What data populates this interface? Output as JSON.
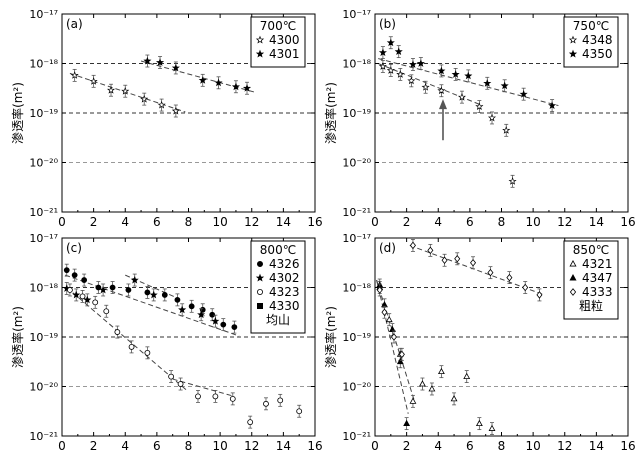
{
  "figure": {
    "y_tick_labels": [
      "10⁻¹⁷",
      "10⁻¹⁸",
      "10⁻¹⁹",
      "10⁻²⁰",
      "10⁻²¹"
    ],
    "x_tick_labels": [
      "0",
      "2",
      "4",
      "6",
      "8",
      "10",
      "12",
      "14",
      "16"
    ]
  },
  "chart_data": [
    {
      "type": "scatter",
      "panel": "(a)",
      "ylabel": "渗透率(m²)",
      "xlim": [
        0,
        16
      ],
      "ylim_log10": [
        -21,
        -17
      ],
      "legend_title": "700℃",
      "series": [
        {
          "name": "4300",
          "marker": "star-open",
          "x": [
            0.8,
            2.0,
            3.1,
            4.0,
            5.2,
            6.3,
            7.2
          ],
          "log_y": [
            -18.24,
            -18.36,
            -18.54,
            -18.56,
            -18.72,
            -18.84,
            -18.96
          ]
        },
        {
          "name": "4301",
          "marker": "star-filled",
          "x": [
            5.4,
            6.2,
            7.2,
            8.9,
            9.9,
            11.0,
            11.7
          ],
          "log_y": [
            -17.95,
            -17.98,
            -18.09,
            -18.34,
            -18.39,
            -18.47,
            -18.5
          ]
        }
      ],
      "trend_lines": [
        {
          "x": [
            0.5,
            7.8
          ],
          "log_y": [
            -18.2,
            -18.98
          ]
        },
        {
          "x": [
            5.0,
            12.2
          ],
          "log_y": [
            -17.95,
            -18.58
          ]
        }
      ],
      "reference_lines_log_y": [
        -18,
        -19,
        -20
      ]
    },
    {
      "type": "scatter",
      "panel": "(b)",
      "ylabel": "渗透率(m²)",
      "xlim": [
        0,
        16
      ],
      "ylim_log10": [
        -21,
        -17
      ],
      "legend_title": "750℃",
      "series": [
        {
          "name": "4348",
          "marker": "star-open",
          "x": [
            0.5,
            1.0,
            1.6,
            2.3,
            3.2,
            4.2,
            5.5,
            6.6,
            7.4,
            8.3,
            8.7
          ],
          "log_y": [
            -18.06,
            -18.14,
            -18.22,
            -18.35,
            -18.48,
            -18.55,
            -18.68,
            -18.87,
            -19.1,
            -19.35,
            -20.38
          ]
        },
        {
          "name": "4350",
          "marker": "star-filled",
          "x": [
            0.5,
            1.0,
            1.5,
            2.4,
            2.9,
            4.2,
            5.1,
            5.9,
            7.1,
            8.2,
            9.4,
            11.2
          ],
          "log_y": [
            -17.78,
            -17.58,
            -17.76,
            -18.02,
            -18.0,
            -18.15,
            -18.22,
            -18.25,
            -18.4,
            -18.45,
            -18.62,
            -18.85
          ]
        }
      ],
      "trend_lines": [
        {
          "x": [
            0.2,
            6.8
          ],
          "log_y": [
            -18.0,
            -18.85
          ]
        },
        {
          "x": [
            0.2,
            11.6
          ],
          "log_y": [
            -17.9,
            -18.85
          ]
        }
      ],
      "arrow": {
        "x": 4.3,
        "log_y_from": -19.55,
        "log_y_to": -18.72
      },
      "reference_lines_log_y": [
        -18,
        -19,
        -20
      ]
    },
    {
      "type": "scatter",
      "panel": "(c)",
      "ylabel": "渗透率(m²)",
      "xlim": [
        0,
        16
      ],
      "ylim_log10": [
        -21,
        -17
      ],
      "legend_title": "800℃",
      "series": [
        {
          "name": "4326",
          "marker": "circle-filled",
          "x": [
            0.3,
            0.8,
            1.4,
            2.3,
            3.2,
            4.2,
            5.4,
            6.5,
            7.3,
            8.2,
            8.9,
            9.5,
            10.2,
            10.9
          ],
          "log_y": [
            -17.65,
            -17.75,
            -17.85,
            -18.0,
            -18.0,
            -18.05,
            -18.1,
            -18.15,
            -18.25,
            -18.38,
            -18.45,
            -18.55,
            -18.75,
            -18.8
          ]
        },
        {
          "name": "4302",
          "marker": "star-filled",
          "x": [
            0.3,
            0.9,
            1.6,
            2.6,
            4.6,
            5.8,
            7.6,
            8.8,
            9.7
          ],
          "log_y": [
            -18.02,
            -18.15,
            -18.25,
            -18.05,
            -17.85,
            -18.15,
            -18.45,
            -18.55,
            -18.68
          ]
        },
        {
          "name": "4323",
          "marker": "circle-open",
          "x": [
            0.5,
            1.3,
            2.1,
            2.8,
            3.5,
            4.4,
            5.4,
            6.9,
            7.5,
            8.6,
            9.7,
            10.8,
            11.9,
            12.9,
            13.8,
            15.0
          ],
          "log_y": [
            -18.05,
            -18.18,
            -18.3,
            -18.48,
            -18.9,
            -19.2,
            -19.32,
            -19.8,
            -19.95,
            -20.2,
            -20.2,
            -20.25,
            -20.72,
            -20.35,
            -20.28,
            -20.5
          ]
        },
        {
          "name": "4330",
          "marker": "square-filled",
          "x": [],
          "log_y": []
        }
      ],
      "trend_lines": [
        {
          "x": [
            0.3,
            7.9
          ],
          "log_y": [
            -18.0,
            -20.08
          ]
        },
        {
          "x": [
            7.0,
            10.9
          ],
          "log_y": [
            -19.85,
            -20.2
          ]
        },
        {
          "x": [
            0.2,
            11.2
          ],
          "log_y": [
            -17.75,
            -18.98
          ]
        },
        {
          "x": [
            4.0,
            7.2
          ],
          "log_y": [
            -17.75,
            -18.2
          ]
        }
      ],
      "annotation": "均山",
      "reference_lines_log_y": [
        -18,
        -19,
        -20
      ]
    },
    {
      "type": "scatter",
      "panel": "(d)",
      "ylabel": "渗透率(m²)",
      "xlim": [
        0,
        16
      ],
      "ylim_log10": [
        -21,
        -17
      ],
      "legend_title": "850℃",
      "series": [
        {
          "name": "4321",
          "marker": "triangle-open",
          "x": [
            0.3,
            0.9,
            1.6,
            2.4,
            3.0,
            3.6,
            4.2,
            5.0,
            5.8,
            6.6,
            7.4
          ],
          "log_y": [
            -18.0,
            -18.65,
            -19.35,
            -20.3,
            -19.95,
            -20.05,
            -19.7,
            -20.25,
            -19.8,
            -20.75,
            -20.85
          ]
        },
        {
          "name": "4347",
          "marker": "triangle-filled",
          "x": [
            0.3,
            0.6,
            1.1,
            1.6,
            2.0
          ],
          "log_y": [
            -17.95,
            -18.35,
            -18.85,
            -19.5,
            -20.75
          ]
        },
        {
          "name": "4333",
          "marker": "diamond-open",
          "x": [
            0.3,
            0.6,
            1.2,
            1.7,
            2.4,
            3.5,
            4.4,
            5.2,
            6.2,
            7.3,
            8.5,
            9.5,
            10.4
          ],
          "log_y": [
            -18.05,
            -18.5,
            -19.0,
            -19.35,
            -17.15,
            -17.25,
            -17.45,
            -17.42,
            -17.5,
            -17.7,
            -17.8,
            -18.0,
            -18.15
          ]
        }
      ],
      "trend_lines": [
        {
          "x": [
            0.1,
            2.1
          ],
          "log_y": [
            -17.85,
            -20.55
          ]
        },
        {
          "x": [
            0.1,
            2.5
          ],
          "log_y": [
            -17.85,
            -20.3
          ]
        },
        {
          "x": [
            2.2,
            10.7
          ],
          "log_y": [
            -17.15,
            -18.15
          ]
        }
      ],
      "annotation": "粗粒",
      "reference_lines_log_y": [
        -18,
        -19,
        -20
      ]
    }
  ]
}
